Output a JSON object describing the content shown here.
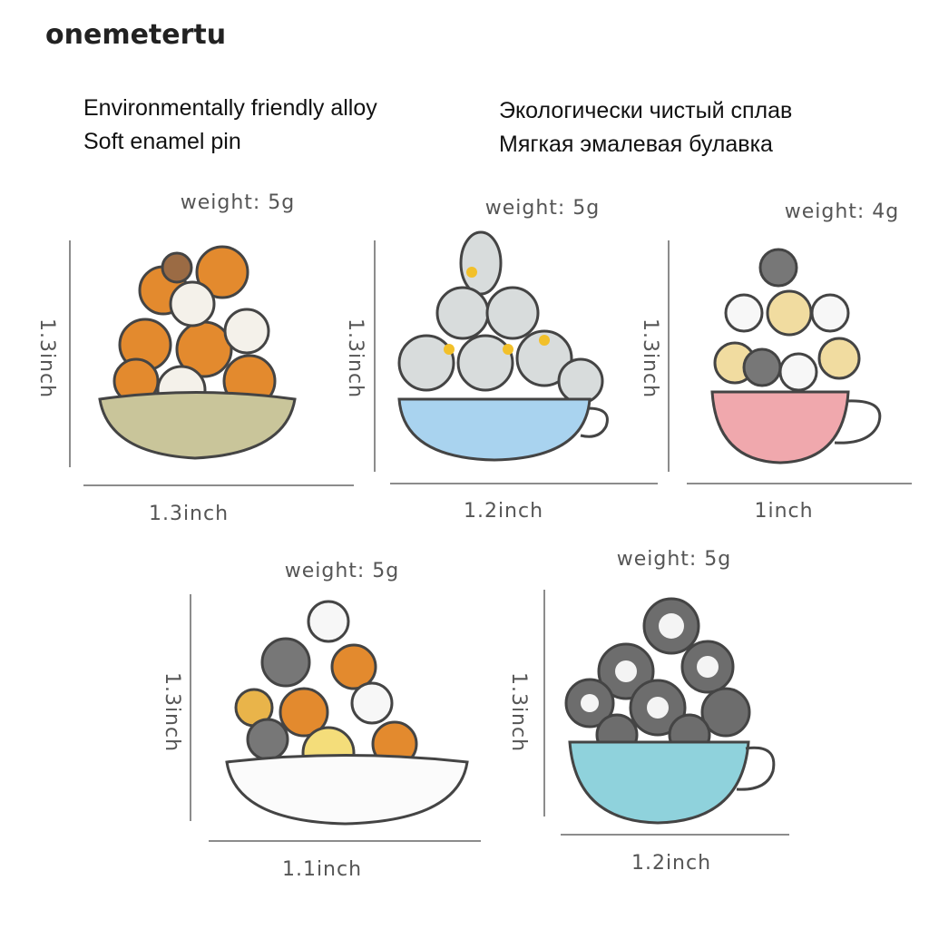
{
  "brand": "onemetertu",
  "description": {
    "en": [
      "Environmentally friendly alloy",
      "Soft enamel pin"
    ],
    "ru": [
      "Экологически чистый сплав",
      "Мягкая эмалевая булавка"
    ]
  },
  "pins": [
    {
      "weight": "weight: 5g",
      "height": "1.3inch",
      "width": "1.3inch"
    },
    {
      "weight": "weight: 5g",
      "height": "1.3inch",
      "width": "1.2inch"
    },
    {
      "weight": "weight: 4g",
      "height": "1.3inch",
      "width": "1inch"
    },
    {
      "weight": "weight: 5g",
      "height": "1.3inch",
      "width": "1.1inch"
    },
    {
      "weight": "weight: 5g",
      "height": "1.3inch",
      "width": "1.2inch"
    }
  ]
}
